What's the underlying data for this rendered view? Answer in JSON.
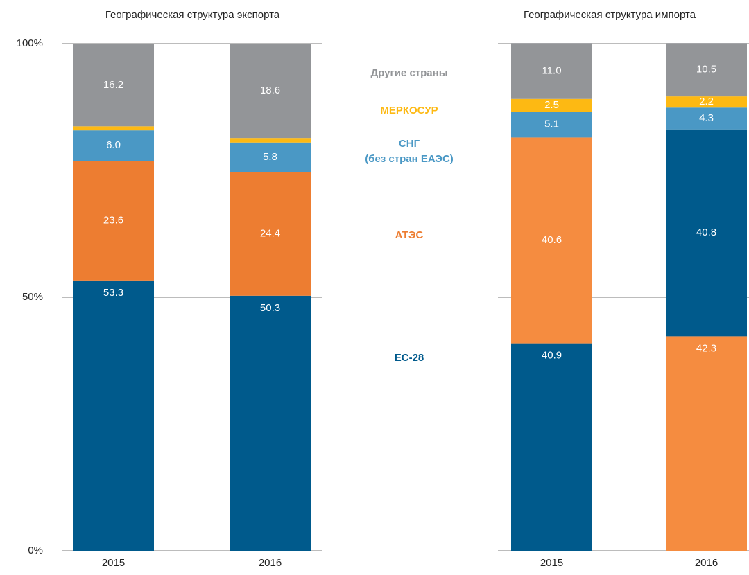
{
  "chart_data": [
    {
      "type": "stacked_bar",
      "title": "Географическая структура экспорта",
      "categories": [
        "2015",
        "2016"
      ],
      "series": [
        {
          "name": "ЕС-28",
          "color": "#005a8c",
          "values": [
            53.3,
            50.3
          ]
        },
        {
          "name": "АТЭС",
          "color": "#ed7d31",
          "values": [
            23.6,
            24.4
          ]
        },
        {
          "name": "СНГ\n(без стран ЕАЭС)",
          "color": "#4a98c5",
          "values": [
            6.0,
            5.8
          ],
          "value_labels": [
            "6.0",
            "5.8"
          ]
        },
        {
          "name": "МЕРКОСУР",
          "color": "#fdb913",
          "values": [
            0.8,
            0.9
          ]
        },
        {
          "name": "Другие страны",
          "color": "#939598",
          "values": [
            16.2,
            18.6
          ]
        }
      ],
      "stack_order": [
        [
          0,
          1,
          2,
          3,
          4
        ],
        [
          0,
          1,
          2,
          3,
          4
        ]
      ],
      "ylim": [
        0,
        100
      ],
      "yticks": [
        {
          "value": 0,
          "label": "0%"
        },
        {
          "value": 50,
          "label": "50%"
        },
        {
          "value": 100,
          "label": "100%"
        }
      ],
      "grid": true
    },
    {
      "type": "stacked_bar",
      "title": "Географическая структура импорта",
      "categories": [
        "2015",
        "2016"
      ],
      "series": [
        {
          "name": "ЕС-28",
          "color": "#005a8c",
          "values": [
            40.9,
            40.8
          ]
        },
        {
          "name": "АТЭС",
          "color": "#f58c40",
          "values": [
            40.6,
            42.3
          ]
        },
        {
          "name": "СНГ\n(без стран ЕАЭС)",
          "color": "#4a98c5",
          "values": [
            5.1,
            4.3
          ]
        },
        {
          "name": "МЕРКОСУР",
          "color": "#fdb913",
          "values": [
            2.5,
            2.2
          ]
        },
        {
          "name": "Другие страны",
          "color": "#939598",
          "values": [
            11.0,
            10.5
          ],
          "value_labels": [
            "11.0",
            "10.5"
          ]
        }
      ],
      "stack_order": [
        [
          0,
          1,
          2,
          3,
          4
        ],
        [
          1,
          0,
          2,
          3,
          4
        ]
      ],
      "ylim": [
        0,
        100
      ],
      "yticks": [
        0,
        50,
        100
      ],
      "grid": true
    }
  ]
}
